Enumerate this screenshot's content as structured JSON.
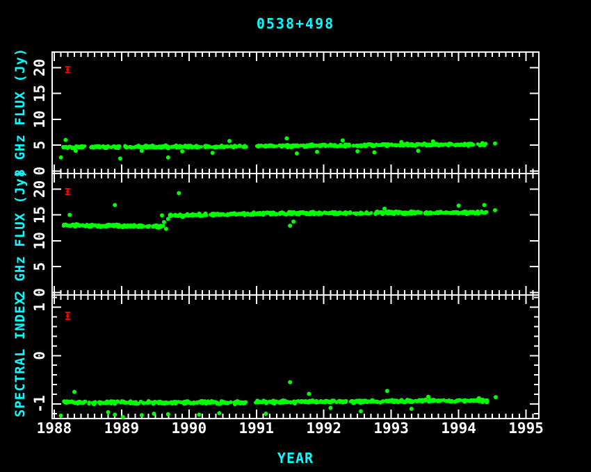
{
  "title": "0538+498",
  "colors": {
    "background": "#000000",
    "frame": "#ffffff",
    "tick_label": "#ffffff",
    "axis_label": "#00ffff",
    "data_point": "#00ff00",
    "calibration_point": "#ff0000"
  },
  "chart_data": {
    "type": "scatter",
    "title": "0538+498",
    "xlabel": "YEAR",
    "xlim": [
      1987.97,
      1995.19
    ],
    "x_major_ticks": [
      1988,
      1989,
      1990,
      1991,
      1992,
      1993,
      1994,
      1995
    ],
    "x_minor_step": 0.1,
    "grid": false,
    "marker": "filled-circle",
    "panels": [
      {
        "id": "flux-8ghz",
        "ylabel": "8 GHz FLUX (Jy)",
        "ylim": [
          -0.5,
          23
        ],
        "y_major_ticks": [
          0,
          5,
          10,
          15,
          20
        ],
        "y_minor_step": 0,
        "band_segments": [
          {
            "x_start": 1988.13,
            "x_end": 1990.85,
            "y_start": 4.6,
            "y_end": 4.72,
            "scatter": 0.28,
            "n_points": 240
          },
          {
            "x_start": 1990.98,
            "x_end": 1994.42,
            "y_start": 4.8,
            "y_end": 5.15,
            "scatter": 0.28,
            "n_points": 300
          }
        ],
        "outliers": [
          [
            1988.1,
            2.6
          ],
          [
            1988.17,
            6.0
          ],
          [
            1988.32,
            3.9
          ],
          [
            1988.98,
            2.4
          ],
          [
            1989.3,
            3.9
          ],
          [
            1989.69,
            2.6
          ],
          [
            1989.9,
            3.8
          ],
          [
            1990.35,
            3.5
          ],
          [
            1990.6,
            5.8
          ],
          [
            1991.45,
            6.3
          ],
          [
            1991.6,
            3.4
          ],
          [
            1991.9,
            3.7
          ],
          [
            1992.28,
            5.9
          ],
          [
            1992.5,
            3.8
          ],
          [
            1992.75,
            3.6
          ],
          [
            1993.15,
            5.6
          ],
          [
            1993.4,
            3.9
          ],
          [
            1993.62,
            5.7
          ],
          [
            1994.54,
            5.3
          ]
        ],
        "calibration_point": {
          "x": 1988.2,
          "y": 19.6,
          "y_err": 0.55
        }
      },
      {
        "id": "flux-2ghz",
        "ylabel": "2 GHz FLUX (Jy)",
        "ylim": [
          -0.5,
          23
        ],
        "y_major_ticks": [
          0,
          5,
          10,
          15,
          20
        ],
        "y_minor_step": 0,
        "band_segments": [
          {
            "x_start": 1988.13,
            "x_end": 1989.62,
            "y_start": 13.0,
            "y_end": 12.75,
            "scatter": 0.3,
            "n_points": 140
          },
          {
            "x_start": 1989.7,
            "x_end": 1991.2,
            "y_start": 14.85,
            "y_end": 15.3,
            "scatter": 0.3,
            "n_points": 140
          },
          {
            "x_start": 1991.2,
            "x_end": 1994.42,
            "y_start": 15.3,
            "y_end": 15.45,
            "scatter": 0.3,
            "n_points": 290
          }
        ],
        "outliers": [
          [
            1988.23,
            15.0
          ],
          [
            1988.9,
            16.9
          ],
          [
            1989.6,
            14.9
          ],
          [
            1989.63,
            13.6
          ],
          [
            1989.66,
            12.3
          ],
          [
            1989.69,
            14.2
          ],
          [
            1989.85,
            19.2
          ],
          [
            1991.5,
            12.9
          ],
          [
            1991.55,
            13.7
          ],
          [
            1992.9,
            16.2
          ],
          [
            1994.0,
            16.8
          ],
          [
            1994.38,
            16.9
          ],
          [
            1994.54,
            15.9
          ]
        ],
        "calibration_point": {
          "x": 1988.2,
          "y": 19.5,
          "y_err": 0.55
        }
      },
      {
        "id": "spectral-index",
        "ylabel": "SPECTRAL INDEX",
        "ylim": [
          -1.3,
          1.25
        ],
        "y_major_ticks": [
          -1,
          0,
          1
        ],
        "y_minor_step": 0.2,
        "band_segments": [
          {
            "x_start": 1988.13,
            "x_end": 1990.85,
            "y_start": -0.97,
            "y_end": -0.97,
            "scatter": 0.035,
            "n_points": 240
          },
          {
            "x_start": 1990.98,
            "x_end": 1994.42,
            "y_start": -0.96,
            "y_end": -0.93,
            "scatter": 0.035,
            "n_points": 300
          }
        ],
        "outliers": [
          [
            1988.1,
            -1.24
          ],
          [
            1988.3,
            -0.75
          ],
          [
            1988.8,
            -1.17
          ],
          [
            1988.9,
            -1.22
          ],
          [
            1989.02,
            -1.27
          ],
          [
            1989.3,
            -1.23
          ],
          [
            1989.48,
            -1.2
          ],
          [
            1989.69,
            -1.21
          ],
          [
            1990.15,
            -1.22
          ],
          [
            1990.45,
            -1.19
          ],
          [
            1991.14,
            -1.2
          ],
          [
            1991.5,
            -0.55
          ],
          [
            1991.78,
            -0.79
          ],
          [
            1992.1,
            -1.08
          ],
          [
            1992.55,
            -1.15
          ],
          [
            1992.94,
            -0.73
          ],
          [
            1993.3,
            -1.1
          ],
          [
            1993.55,
            -0.85
          ],
          [
            1994.3,
            -0.88
          ],
          [
            1994.55,
            -0.86
          ]
        ],
        "calibration_point": {
          "x": 1988.2,
          "y": 0.82,
          "y_err": 0.07
        }
      }
    ]
  }
}
